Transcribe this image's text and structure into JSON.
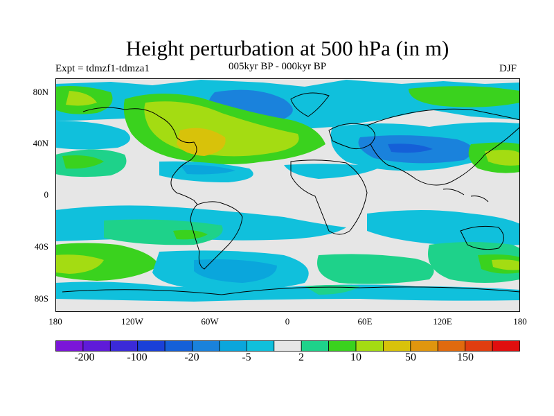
{
  "title": "Height perturbation at 500 hPa (in m)",
  "experiment_label": "Expt = tdmzf1-tdmza1",
  "period_label": "005kyr BP - 000kyr BP",
  "season_label": "DJF",
  "lat_ticks": [
    "80N",
    "40N",
    "0",
    "40S",
    "80S"
  ],
  "lon_ticks": [
    "180",
    "120W",
    "60W",
    "0",
    "60E",
    "120E",
    "180"
  ],
  "colorbar": {
    "labels": [
      "-200",
      "-100",
      "-20",
      "-5",
      "2",
      "10",
      "50",
      "150"
    ],
    "colors": [
      "#7b16d8",
      "#5f1bd9",
      "#3b2ad8",
      "#1a40d8",
      "#1560d8",
      "#1a82dc",
      "#0aa6dc",
      "#10c0dc",
      "#e6e6e6",
      "#1ed28a",
      "#3ad21e",
      "#a4dc12",
      "#d8c20a",
      "#e0960e",
      "#e06a0e",
      "#e03d10",
      "#e00e0e"
    ]
  },
  "palette": {
    "neutral": "#e6e6e6",
    "neg_light": "#10c0dc",
    "neg_mid": "#0aa6dc",
    "neg_strong": "#1a82dc",
    "pos_light": "#1ed28a",
    "pos_mid": "#3ad21e",
    "pos_strong": "#a4dc12",
    "pos_max": "#d8c20a"
  }
}
